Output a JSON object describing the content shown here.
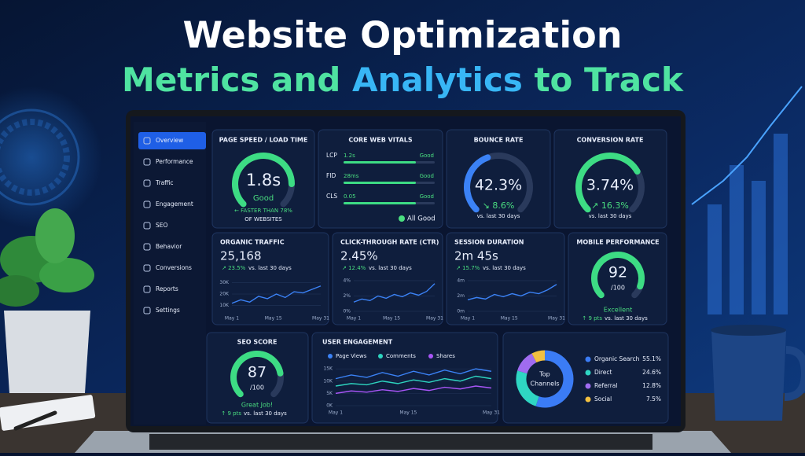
{
  "header": {
    "title": "Website Optimization",
    "subtitle": [
      "Metrics and",
      "Analytics",
      "to Track"
    ]
  },
  "sidebar": {
    "active": 0,
    "items": [
      "Overview",
      "Performance",
      "Traffic",
      "Engagement",
      "SEO",
      "Behavior",
      "Conversions",
      "Reports",
      "Settings"
    ]
  },
  "cards": {
    "page_speed": {
      "title": "PAGE SPEED / LOAD TIME",
      "value": "1.8s",
      "status": "Good",
      "note": [
        "← FASTER THAN 78%",
        "OF WEBSITES"
      ]
    },
    "core_web_vitals": {
      "title": "CORE WEB VITALS",
      "rows": [
        {
          "metric": "LCP",
          "value": "1.2s",
          "status": "Good"
        },
        {
          "metric": "FID",
          "value": "28ms",
          "status": "Good"
        },
        {
          "metric": "CLS",
          "value": "0.05",
          "status": "Good"
        }
      ],
      "footer": "All Good"
    },
    "bounce_rate": {
      "title": "BOUNCE RATE",
      "value": "42.3%",
      "change": "↘ 8.6%",
      "period": "vs. last 30 days"
    },
    "conversion_rate": {
      "title": "CONVERSION RATE",
      "value": "3.74%",
      "change": "↗ 16.3%",
      "period": "vs. last 30 days"
    },
    "organic_traffic": {
      "title": "ORGANIC TRAFFIC",
      "value": "25,168",
      "change": "↗ 23.5%",
      "period": "vs. last 30 days",
      "chart": {
        "type": "line",
        "color": "#3b82f6",
        "x": [
          1,
          4,
          7,
          10,
          13,
          16,
          19,
          22,
          25,
          28,
          31
        ],
        "values": [
          12000,
          15000,
          13000,
          18000,
          16000,
          20000,
          17000,
          22000,
          21000,
          24000,
          27000
        ],
        "xlim": [
          1,
          31
        ],
        "xticks": [
          {
            "value": 1,
            "label": "May 1"
          },
          {
            "value": 15,
            "label": "May 15"
          },
          {
            "value": 31,
            "label": "May 31"
          }
        ],
        "ylim": [
          5000,
          35000
        ],
        "yticks": [
          {
            "value": 10000,
            "label": "10K"
          },
          {
            "value": 20000,
            "label": "20K"
          },
          {
            "value": 30000,
            "label": "30K"
          }
        ]
      }
    },
    "ctr": {
      "title": "CLICK-THROUGH RATE (CTR)",
      "value": "2.45%",
      "change": "↗ 12.4%",
      "period": "vs. last 30 days",
      "chart": {
        "type": "line",
        "color": "#3b82f6",
        "x": [
          1,
          4,
          7,
          10,
          13,
          16,
          19,
          22,
          25,
          28,
          31
        ],
        "values": [
          1.2,
          1.6,
          1.4,
          2.0,
          1.7,
          2.2,
          1.9,
          2.4,
          2.1,
          2.6,
          3.6
        ],
        "xlim": [
          1,
          31
        ],
        "xticks": [
          {
            "value": 1,
            "label": "May 1"
          },
          {
            "value": 15,
            "label": "May 15"
          },
          {
            "value": 31,
            "label": "May 31"
          }
        ],
        "ylim": [
          0,
          4.5
        ],
        "yticks": [
          {
            "value": 0,
            "label": "0%"
          },
          {
            "value": 2,
            "label": "2%"
          },
          {
            "value": 4,
            "label": "4%"
          }
        ]
      }
    },
    "session_duration": {
      "title": "SESSION DURATION",
      "value": "2m 45s",
      "change": "↗ 15.7%",
      "period": "vs. last 30 days",
      "chart": {
        "type": "line",
        "color": "#3b82f6",
        "x": [
          1,
          4,
          7,
          10,
          13,
          16,
          19,
          22,
          25,
          28,
          31
        ],
        "values": [
          1.5,
          1.8,
          1.6,
          2.2,
          1.9,
          2.3,
          2.0,
          2.5,
          2.3,
          2.8,
          3.5
        ],
        "xlim": [
          1,
          31
        ],
        "xticks": [
          {
            "value": 1,
            "label": "May 1"
          },
          {
            "value": 15,
            "label": "May 15"
          },
          {
            "value": 31,
            "label": "May 31"
          }
        ],
        "ylim": [
          0,
          4.5
        ],
        "yticks": [
          {
            "value": 0,
            "label": "0m"
          },
          {
            "value": 2,
            "label": "2m"
          },
          {
            "value": 4,
            "label": "4m"
          }
        ]
      }
    },
    "mobile_performance": {
      "title": "MOBILE PERFORMANCE",
      "value": "92",
      "scale": "/100",
      "status": "Excellent",
      "change": "↑ 9 pts",
      "period": "vs. last 30 days"
    },
    "seo_score": {
      "title": "SEO SCORE",
      "value": "87",
      "scale": "/100",
      "status": "Great Job!",
      "change": "↑ 9 pts",
      "period": "vs. last 30 days"
    },
    "user_engagement": {
      "title": "USER ENGAGEMENT",
      "chart": {
        "type": "line",
        "x": [
          1,
          4,
          7,
          10,
          13,
          16,
          19,
          22,
          25,
          28,
          31
        ],
        "xlim": [
          1,
          31
        ],
        "xticks": [
          {
            "value": 1,
            "label": "May 1"
          },
          {
            "value": 15,
            "label": "May 15"
          },
          {
            "value": 31,
            "label": "May 31"
          }
        ],
        "ylim": [
          0,
          16000
        ],
        "yticks": [
          {
            "value": 0,
            "label": "0K"
          },
          {
            "value": 5000,
            "label": "5K"
          },
          {
            "value": 10000,
            "label": "10K"
          },
          {
            "value": 15000,
            "label": "15K"
          }
        ],
        "series": [
          {
            "name": "Page Views",
            "color": "#3b82f6",
            "values": [
              11000,
              12500,
              11500,
              13500,
              12000,
              14000,
              12500,
              14500,
              13000,
              15000,
              14000
            ]
          },
          {
            "name": "Comments",
            "color": "#2dd4bf",
            "values": [
              8000,
              9000,
              8500,
              10000,
              9000,
              10500,
              9500,
              11000,
              10000,
              12000,
              11000
            ]
          },
          {
            "name": "Shares",
            "color": "#a855f7",
            "values": [
              5000,
              6000,
              5500,
              6500,
              5800,
              7000,
              6200,
              7500,
              6800,
              8000,
              7200
            ]
          }
        ]
      }
    },
    "top_channels": {
      "title": [
        "Top",
        "Channels"
      ],
      "chart": {
        "type": "donut",
        "categories": [
          "Organic Search",
          "Direct",
          "Referral",
          "Social"
        ],
        "values": [
          55.1,
          24.6,
          12.8,
          7.5
        ],
        "value_labels": [
          "55.1%",
          "24.6%",
          "12.8%",
          "7.5%"
        ],
        "colors": [
          "#3b7cf5",
          "#2fd6c3",
          "#a06cf0",
          "#f2c040"
        ]
      }
    }
  }
}
